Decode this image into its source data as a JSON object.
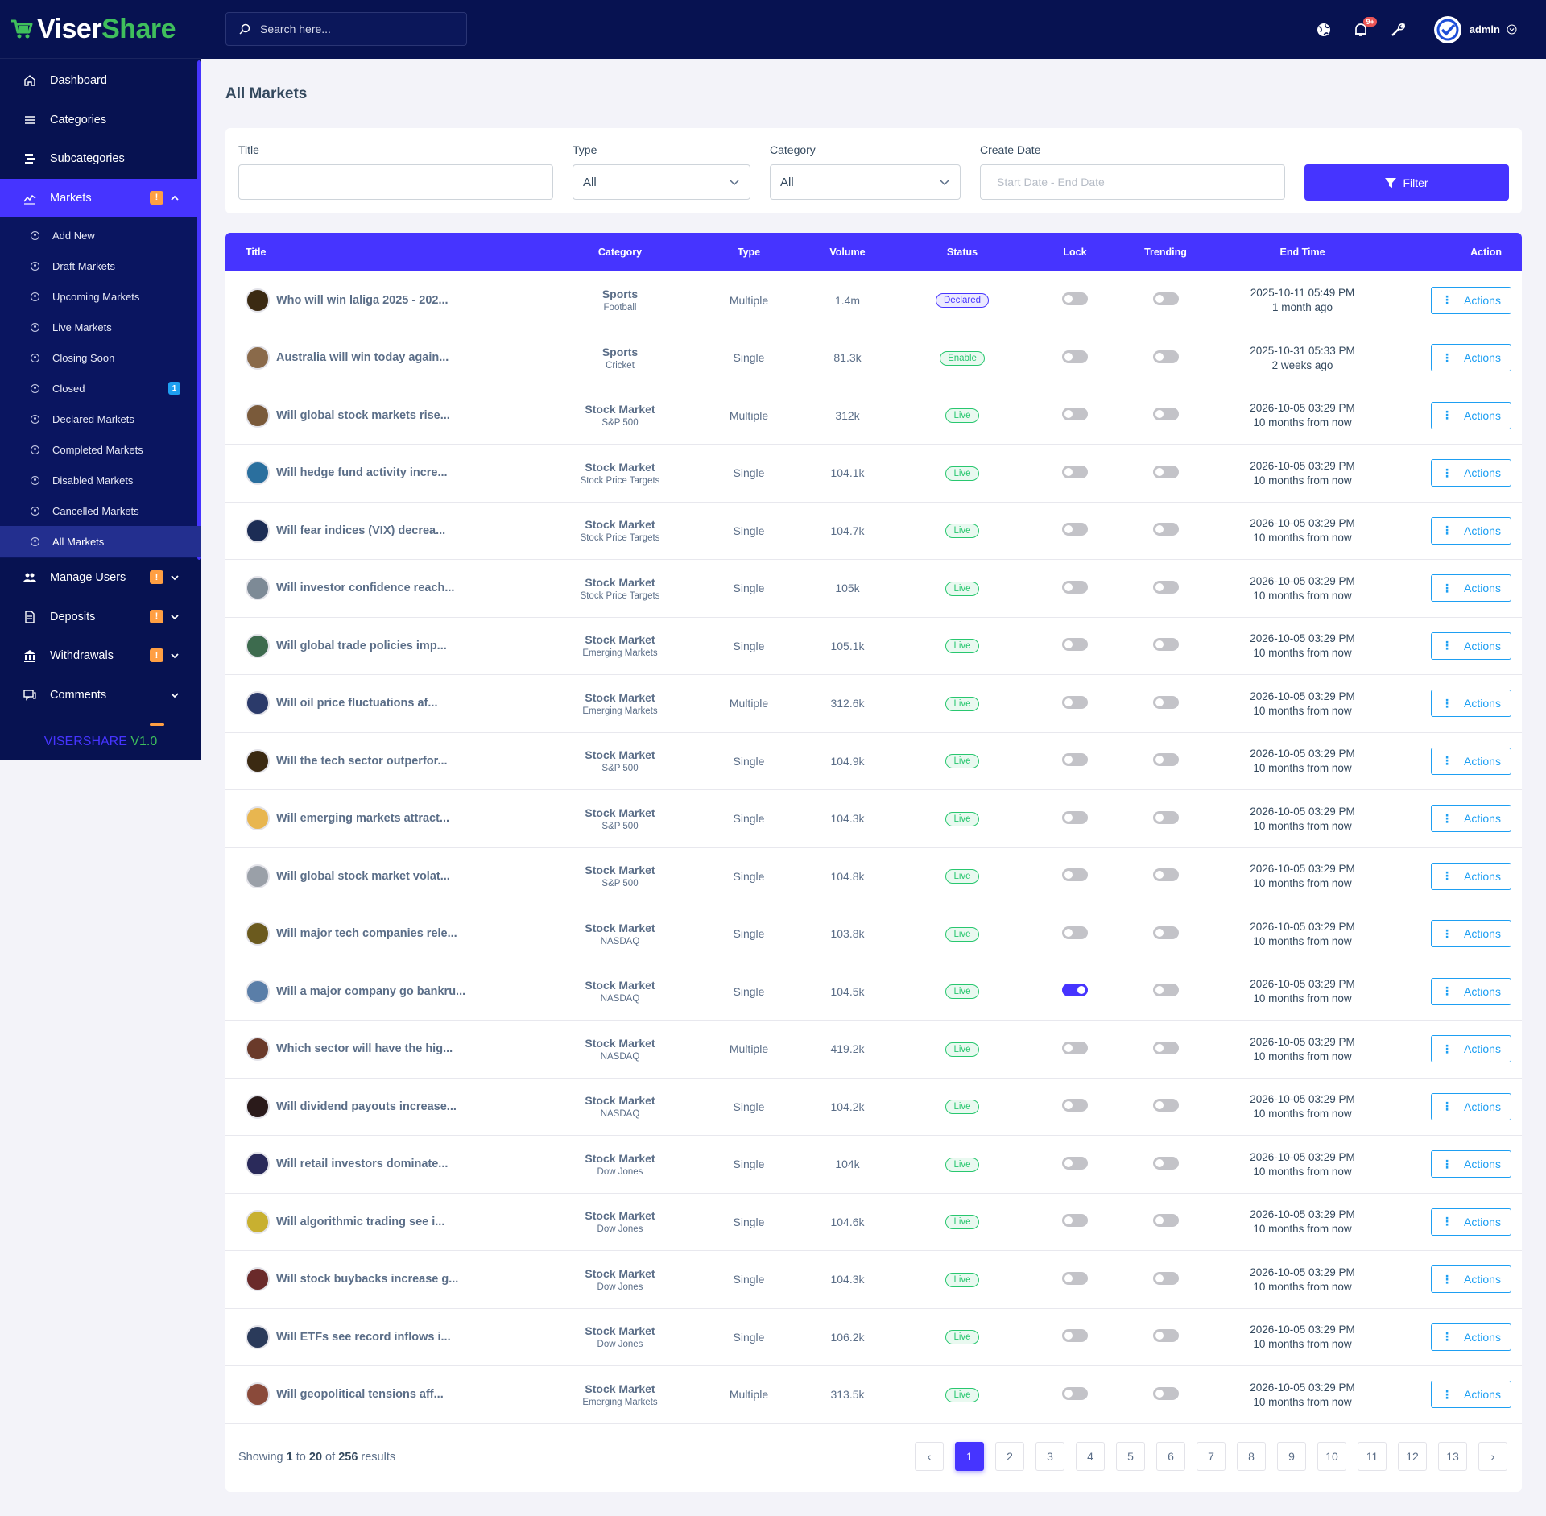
{
  "brand": {
    "name_a": "Viser",
    "name_b": "Share"
  },
  "version": {
    "a": "VISERSHARE",
    "b": " V1.0"
  },
  "sidebar": {
    "items": [
      {
        "label": "Dashboard",
        "icon": "home-icon"
      },
      {
        "label": "Categories",
        "icon": "menu-icon"
      },
      {
        "label": "Subcategories",
        "icon": "layers-icon"
      },
      {
        "label": "Markets",
        "icon": "chart-icon",
        "badge": "!",
        "active": true
      },
      {
        "label": "Manage Users",
        "icon": "users-icon",
        "badge": "!"
      },
      {
        "label": "Deposits",
        "icon": "deposit-icon",
        "badge": "!"
      },
      {
        "label": "Withdrawals",
        "icon": "bank-icon",
        "badge": "!"
      },
      {
        "label": "Comments",
        "icon": "comment-icon"
      }
    ],
    "markets_sub": [
      {
        "label": "Add New"
      },
      {
        "label": "Draft Markets"
      },
      {
        "label": "Upcoming Markets"
      },
      {
        "label": "Live Markets"
      },
      {
        "label": "Closing Soon"
      },
      {
        "label": "Closed",
        "badge": "1"
      },
      {
        "label": "Declared Markets"
      },
      {
        "label": "Completed Markets"
      },
      {
        "label": "Disabled Markets"
      },
      {
        "label": "Cancelled Markets"
      },
      {
        "label": "All Markets",
        "active": true
      }
    ]
  },
  "topbar": {
    "search_placeholder": "Search here...",
    "notif_count": "9+",
    "admin_name": "admin"
  },
  "page": {
    "title": "All Markets"
  },
  "filters": {
    "title_label": "Title",
    "title_value": "",
    "type_label": "Type",
    "type_value": "All",
    "category_label": "Category",
    "category_value": "All",
    "date_label": "Create Date",
    "date_placeholder": "Start Date - End Date",
    "filter_button": "Filter"
  },
  "table": {
    "headers": [
      "Title",
      "Category",
      "Type",
      "Volume",
      "Status",
      "Lock",
      "Trending",
      "End Time",
      "Action"
    ],
    "action_label": "Actions",
    "rows": [
      {
        "title": "Who will win laliga 2025 - 202...",
        "cat": "Sports",
        "sub": "Football",
        "type": "Multiple",
        "volume": "1.4m",
        "status": "Declared",
        "lock": false,
        "trending": false,
        "end": "2025-10-11 05:49 PM",
        "rel": "1 month ago",
        "thumb": "#3b2a12"
      },
      {
        "title": "Australia will win today again...",
        "cat": "Sports",
        "sub": "Cricket",
        "type": "Single",
        "volume": "81.3k",
        "status": "Enable",
        "lock": false,
        "trending": false,
        "end": "2025-10-31 05:33 PM",
        "rel": "2 weeks ago",
        "thumb": "#8a6a4a"
      },
      {
        "title": "Will global stock markets rise...",
        "cat": "Stock Market",
        "sub": "S&P 500",
        "type": "Multiple",
        "volume": "312k",
        "status": "Live",
        "lock": false,
        "trending": false,
        "end": "2026-10-05 03:29 PM",
        "rel": "10 months from now",
        "thumb": "#7a5a3a"
      },
      {
        "title": "Will hedge fund activity incre...",
        "cat": "Stock Market",
        "sub": "Stock Price Targets",
        "type": "Single",
        "volume": "104.1k",
        "status": "Live",
        "lock": false,
        "trending": false,
        "end": "2026-10-05 03:29 PM",
        "rel": "10 months from now",
        "thumb": "#2a6f9e"
      },
      {
        "title": "Will fear indices (VIX) decrea...",
        "cat": "Stock Market",
        "sub": "Stock Price Targets",
        "type": "Single",
        "volume": "104.7k",
        "status": "Live",
        "lock": false,
        "trending": false,
        "end": "2026-10-05 03:29 PM",
        "rel": "10 months from now",
        "thumb": "#1c2d55"
      },
      {
        "title": "Will investor confidence reach...",
        "cat": "Stock Market",
        "sub": "Stock Price Targets",
        "type": "Single",
        "volume": "105k",
        "status": "Live",
        "lock": false,
        "trending": false,
        "end": "2026-10-05 03:29 PM",
        "rel": "10 months from now",
        "thumb": "#7d8a96"
      },
      {
        "title": "Will global trade policies imp...",
        "cat": "Stock Market",
        "sub": "Emerging Markets",
        "type": "Single",
        "volume": "105.1k",
        "status": "Live",
        "lock": false,
        "trending": false,
        "end": "2026-10-05 03:29 PM",
        "rel": "10 months from now",
        "thumb": "#3d6b4e"
      },
      {
        "title": "Will oil price fluctuations af...",
        "cat": "Stock Market",
        "sub": "Emerging Markets",
        "type": "Multiple",
        "volume": "312.6k",
        "status": "Live",
        "lock": false,
        "trending": false,
        "end": "2026-10-05 03:29 PM",
        "rel": "10 months from now",
        "thumb": "#2b3a6a"
      },
      {
        "title": "Will the tech sector outperfor...",
        "cat": "Stock Market",
        "sub": "S&P 500",
        "type": "Single",
        "volume": "104.9k",
        "status": "Live",
        "lock": false,
        "trending": false,
        "end": "2026-10-05 03:29 PM",
        "rel": "10 months from now",
        "thumb": "#3b2a12"
      },
      {
        "title": "Will emerging markets attract...",
        "cat": "Stock Market",
        "sub": "S&P 500",
        "type": "Single",
        "volume": "104.3k",
        "status": "Live",
        "lock": false,
        "trending": false,
        "end": "2026-10-05 03:29 PM",
        "rel": "10 months from now",
        "thumb": "#e8b650"
      },
      {
        "title": "Will global stock market volat...",
        "cat": "Stock Market",
        "sub": "S&P 500",
        "type": "Single",
        "volume": "104.8k",
        "status": "Live",
        "lock": false,
        "trending": false,
        "end": "2026-10-05 03:29 PM",
        "rel": "10 months from now",
        "thumb": "#9aa0a8"
      },
      {
        "title": "Will major tech companies rele...",
        "cat": "Stock Market",
        "sub": "NASDAQ",
        "type": "Single",
        "volume": "103.8k",
        "status": "Live",
        "lock": false,
        "trending": false,
        "end": "2026-10-05 03:29 PM",
        "rel": "10 months from now",
        "thumb": "#6b5a1e"
      },
      {
        "title": "Will a major company go bankru...",
        "cat": "Stock Market",
        "sub": "NASDAQ",
        "type": "Single",
        "volume": "104.5k",
        "status": "Live",
        "lock": true,
        "trending": false,
        "end": "2026-10-05 03:29 PM",
        "rel": "10 months from now",
        "thumb": "#5a7ea8"
      },
      {
        "title": "Which sector will have the hig...",
        "cat": "Stock Market",
        "sub": "NASDAQ",
        "type": "Multiple",
        "volume": "419.2k",
        "status": "Live",
        "lock": false,
        "trending": false,
        "end": "2026-10-05 03:29 PM",
        "rel": "10 months from now",
        "thumb": "#6a3a2a"
      },
      {
        "title": "Will dividend payouts increase...",
        "cat": "Stock Market",
        "sub": "NASDAQ",
        "type": "Single",
        "volume": "104.2k",
        "status": "Live",
        "lock": false,
        "trending": false,
        "end": "2026-10-05 03:29 PM",
        "rel": "10 months from now",
        "thumb": "#2a1a1a"
      },
      {
        "title": "Will retail investors dominate...",
        "cat": "Stock Market",
        "sub": "Dow Jones",
        "type": "Single",
        "volume": "104k",
        "status": "Live",
        "lock": false,
        "trending": false,
        "end": "2026-10-05 03:29 PM",
        "rel": "10 months from now",
        "thumb": "#2a2a5a"
      },
      {
        "title": "Will algorithmic trading see i...",
        "cat": "Stock Market",
        "sub": "Dow Jones",
        "type": "Single",
        "volume": "104.6k",
        "status": "Live",
        "lock": false,
        "trending": false,
        "end": "2026-10-05 03:29 PM",
        "rel": "10 months from now",
        "thumb": "#c8b030"
      },
      {
        "title": "Will stock buybacks increase g...",
        "cat": "Stock Market",
        "sub": "Dow Jones",
        "type": "Single",
        "volume": "104.3k",
        "status": "Live",
        "lock": false,
        "trending": false,
        "end": "2026-10-05 03:29 PM",
        "rel": "10 months from now",
        "thumb": "#6a2a2a"
      },
      {
        "title": "Will ETFs see record inflows i...",
        "cat": "Stock Market",
        "sub": "Dow Jones",
        "type": "Single",
        "volume": "106.2k",
        "status": "Live",
        "lock": false,
        "trending": false,
        "end": "2026-10-05 03:29 PM",
        "rel": "10 months from now",
        "thumb": "#2a3a5a"
      },
      {
        "title": "Will geopolitical tensions aff...",
        "cat": "Stock Market",
        "sub": "Emerging Markets",
        "type": "Multiple",
        "volume": "313.5k",
        "status": "Live",
        "lock": false,
        "trending": false,
        "end": "2026-10-05 03:29 PM",
        "rel": "10 months from now",
        "thumb": "#8a4a3a"
      }
    ]
  },
  "pagination": {
    "showing_prefix": "Showing ",
    "from": "1",
    "to_word": " to ",
    "to": "20",
    "of_word": " of ",
    "total": "256",
    "suffix": " results",
    "prev": "‹",
    "next": "›",
    "pages": [
      "1",
      "2",
      "3",
      "4",
      "5",
      "6",
      "7",
      "8",
      "9",
      "10",
      "11",
      "12",
      "13"
    ],
    "current": "1"
  }
}
